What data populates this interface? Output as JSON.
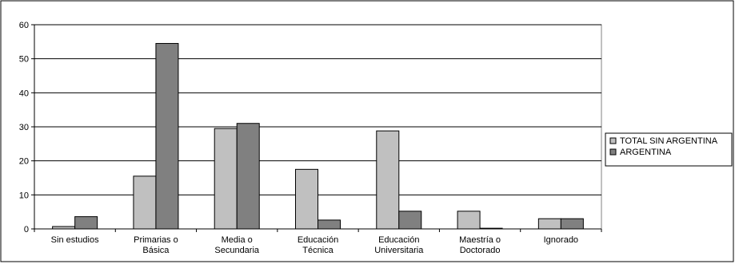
{
  "chart_data": {
    "type": "bar",
    "title": "",
    "xlabel": "",
    "ylabel": "",
    "ylim": [
      0,
      60
    ],
    "yticks": [
      0,
      10,
      20,
      30,
      40,
      50,
      60
    ],
    "grid": true,
    "legend_position": "right",
    "categories": [
      "Sin estudios",
      "Primarias o Básica",
      "Media o Secundaria",
      "Educación Técnica",
      "Educación Universitaria",
      "Maestría o Doctorado",
      "Ignorado"
    ],
    "category_lines": [
      [
        "Sin estudios"
      ],
      [
        "Primarias o",
        "Básica"
      ],
      [
        "Media o",
        "Secundaria"
      ],
      [
        "Educación",
        "Técnica"
      ],
      [
        "Educación",
        "Universitaria"
      ],
      [
        "Maestría o",
        "Doctorado"
      ],
      [
        "Ignorado"
      ]
    ],
    "series": [
      {
        "name": "TOTAL SIN ARGENTINA",
        "color": "#c0c0c0",
        "values": [
          0.7,
          15.5,
          29.5,
          17.5,
          28.8,
          5.2,
          3.0
        ]
      },
      {
        "name": "ARGENTINA",
        "color": "#808080",
        "values": [
          3.6,
          54.5,
          31.0,
          2.6,
          5.2,
          0.2,
          3.0
        ]
      }
    ]
  }
}
